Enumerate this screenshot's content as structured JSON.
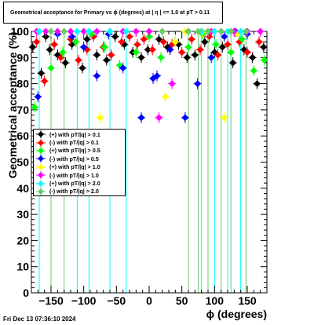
{
  "timestamp": "Fri Dec 13 07:36:10 2024",
  "chart_data": {
    "type": "scatter",
    "title": "Geometrical acceptance for Primary vs ϕ (degrees) at |  η  | <= 1.0 at pT > 0.11",
    "xlabel": "ϕ (degrees)",
    "ylabel": "Geometrical acceptance (%)",
    "xlim": [
      -180,
      180
    ],
    "ylim": [
      0,
      100
    ],
    "xticks": [
      -150,
      -100,
      -50,
      0,
      50,
      100,
      150
    ],
    "yticks": [
      0,
      10,
      20,
      30,
      40,
      50,
      60,
      70,
      80,
      90,
      100
    ],
    "legend_position": "left-middle",
    "series": [
      {
        "name": "(+) with pT/|q| > 0.1",
        "color": "#000000",
        "marker": "circle",
        "x": [
          -178,
          -165,
          -158,
          -152,
          -140,
          -128,
          -118,
          -102,
          -95,
          -80,
          -65,
          -52,
          -38,
          -25,
          -12,
          -2,
          15,
          28,
          45,
          58,
          70,
          85,
          100,
          112,
          128,
          145,
          158,
          165,
          175
        ],
        "y": [
          94,
          84,
          98,
          93,
          91,
          88,
          95,
          86,
          97,
          91,
          89,
          98,
          95,
          92,
          90,
          93,
          97,
          94,
          95,
          90,
          91,
          96,
          92,
          94,
          88,
          93,
          90,
          80,
          94
        ]
      },
      {
        "name": "(-) with pT/|q| > 0.1",
        "color": "#ff0000",
        "marker": "circle",
        "x": [
          -172,
          -160,
          -145,
          -135,
          -120,
          -108,
          -95,
          -85,
          -70,
          -58,
          -42,
          -30,
          -18,
          -8,
          5,
          22,
          35,
          50,
          65,
          78,
          92,
          105,
          120,
          138,
          150,
          168
        ],
        "y": [
          96,
          81,
          95,
          90,
          97,
          89,
          93,
          98,
          94,
          91,
          96,
          98,
          95,
          97,
          93,
          96,
          95,
          92,
          97,
          93,
          98,
          91,
          95,
          96,
          92,
          96
        ]
      },
      {
        "name": "(+) with pT/|q| > 0.5",
        "color": "#00ff00",
        "marker": "circle",
        "x": [
          -175,
          -150,
          -132,
          -112,
          -88,
          -68,
          -45,
          -20,
          0,
          18,
          40,
          60,
          82,
          102,
          125,
          142,
          160,
          176
        ],
        "y": [
          71,
          86,
          92,
          96,
          99,
          94,
          87,
          92,
          98,
          90,
          96,
          94,
          99,
          95,
          92,
          97,
          85,
          89
        ]
      },
      {
        "name": "(-) with pT/|q| > 0.5",
        "color": "#0000ff",
        "marker": "circle",
        "x": [
          -170,
          -140,
          -118,
          -100,
          -80,
          -62,
          -40,
          -12,
          6,
          12,
          32,
          55,
          74,
          95,
          115,
          132,
          150
        ],
        "y": [
          75,
          99,
          98,
          94,
          83,
          99,
          86,
          67,
          82,
          83,
          93,
          67,
          80,
          90,
          98,
          100,
          99
        ]
      },
      {
        "name": "(+) with pT/|q| > 1.0",
        "color": "#ffff00",
        "marker": "circle",
        "x": [
          -75,
          25,
          40,
          55,
          82,
          115,
          135
        ],
        "y": [
          67,
          75,
          96,
          100,
          100,
          67,
          99
        ]
      },
      {
        "name": "(-) with pT/|q| > 1.0",
        "color": "#ff00ff",
        "marker": "circle",
        "x": [
          -172,
          -158,
          -140,
          -120,
          -100,
          -80,
          -60,
          -40,
          -20,
          0,
          15,
          35,
          60,
          80,
          95,
          110,
          130,
          150,
          170
        ],
        "y": [
          100,
          100,
          100,
          100,
          100,
          100,
          100,
          100,
          100,
          100,
          67,
          80,
          100,
          100,
          100,
          100,
          100,
          100,
          100
        ]
      },
      {
        "name": "(+) with pT/|q| > 2.0",
        "color": "#00ffff",
        "marker": "circle",
        "x": [
          -168,
          -110,
          -92,
          -60,
          -35,
          80,
          100,
          120,
          140
        ],
        "y": [
          100,
          100,
          100,
          100,
          100,
          100,
          100,
          100,
          100
        ]
      },
      {
        "name": "(-) with pT/|q| > 2.0",
        "color": "#66cc66",
        "marker": "circle",
        "x": [
          -150,
          -130,
          20,
          60,
          75,
          90,
          110,
          125,
          148
        ],
        "y": [
          100,
          100,
          100,
          100,
          100,
          100,
          100,
          100,
          100
        ]
      }
    ],
    "vertical_lines": [
      {
        "color": "#00ffff",
        "x": [
          -168,
          -110,
          -92,
          -60,
          -35,
          80,
          100,
          120,
          140
        ]
      },
      {
        "color": "#66cc66",
        "x": [
          -150,
          -130,
          60,
          75,
          90,
          110,
          125,
          148
        ]
      }
    ]
  }
}
